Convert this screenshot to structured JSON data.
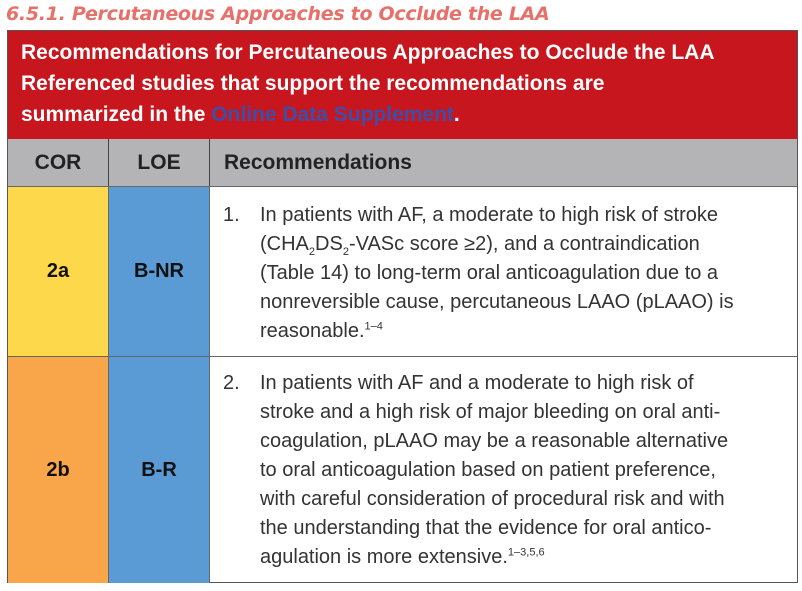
{
  "section_title": "6.5.1. Percutaneous Approaches to Occlude the LAA",
  "header": {
    "line1": "Recommendations for Percutaneous Approaches to Occlude the LAA",
    "line2": "Referenced studies that support the recommendations are",
    "line3_prefix": "summarized in the ",
    "link": "Online Data Supplement",
    "line3_suffix": "."
  },
  "columns": {
    "cor": "COR",
    "loe": "LOE",
    "recs": "Recommendations"
  },
  "rows": [
    {
      "cor": "2a",
      "loe": "B-NR",
      "cor_color": "#fdd84a",
      "loe_color": "#5b9bd5",
      "number": "1.",
      "lines": [
        "In patients with AF, a moderate to high risk of stroke",
        "(CHA",
        "2",
        "DS",
        "2",
        "-VASc score ≥2), and a contraindication",
        "(Table 14) to long-term oral anticoagulation due to a",
        "nonreversible cause, percutaneous LAAO (pLAAO) is",
        "reasonable."
      ],
      "refs": "1–4"
    },
    {
      "cor": "2b",
      "loe": "B-R",
      "cor_color": "#f9a54a",
      "loe_color": "#5b9bd5",
      "number": "2.",
      "lines": [
        "In patients with AF and a moderate to high risk of",
        "stroke and a high risk of major bleeding on oral anti-",
        "coagulation, pLAAO may be a reasonable alternative",
        "to oral anticoagulation based on patient preference,",
        "with careful consideration of procedural risk and with",
        "the understanding that the evidence for oral antico-",
        "agulation is more extensive."
      ],
      "refs": "1–3,5,6"
    }
  ]
}
